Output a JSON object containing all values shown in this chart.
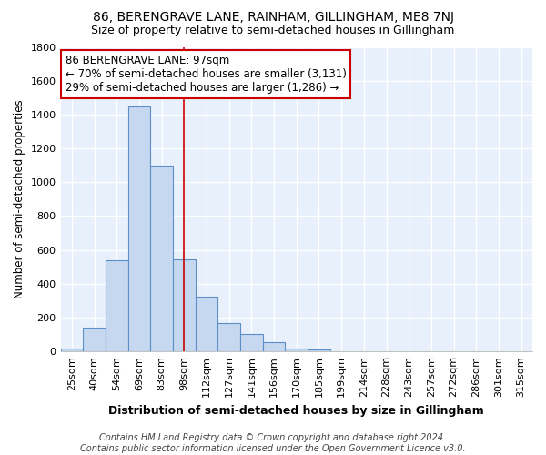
{
  "title": "86, BERENGRAVE LANE, RAINHAM, GILLINGHAM, ME8 7NJ",
  "subtitle": "Size of property relative to semi-detached houses in Gillingham",
  "xlabel": "Distribution of semi-detached houses by size in Gillingham",
  "ylabel": "Number of semi-detached properties",
  "footer_line1": "Contains HM Land Registry data © Crown copyright and database right 2024.",
  "footer_line2": "Contains public sector information licensed under the Open Government Licence v3.0.",
  "categories": [
    "25sqm",
    "40sqm",
    "54sqm",
    "69sqm",
    "83sqm",
    "98sqm",
    "112sqm",
    "127sqm",
    "141sqm",
    "156sqm",
    "170sqm",
    "185sqm",
    "199sqm",
    "214sqm",
    "228sqm",
    "243sqm",
    "257sqm",
    "272sqm",
    "286sqm",
    "301sqm",
    "315sqm"
  ],
  "values": [
    15,
    140,
    540,
    1450,
    1100,
    545,
    325,
    170,
    103,
    57,
    15,
    13,
    0,
    0,
    0,
    0,
    0,
    0,
    0,
    0,
    0
  ],
  "bar_color": "#c5d8f0",
  "bar_edge_color": "#5b8fc9",
  "bar_linewidth": 0.8,
  "plot_bg_color": "#e8f0fb",
  "fig_bg_color": "#ffffff",
  "grid_color": "#ffffff",
  "annotation_box_text": "86 BERENGRAVE LANE: 97sqm\n← 70% of semi-detached houses are smaller (3,131)\n29% of semi-detached houses are larger (1,286) →",
  "annotation_box_color": "#ffffff",
  "annotation_box_edge_color": "#cc0000",
  "vline_x": 5.0,
  "vline_color": "#cc0000",
  "ylim": [
    0,
    1800
  ],
  "title_fontsize": 10,
  "subtitle_fontsize": 9,
  "xlabel_fontsize": 9,
  "ylabel_fontsize": 8.5,
  "tick_fontsize": 8,
  "annotation_fontsize": 8.5,
  "footer_fontsize": 7
}
